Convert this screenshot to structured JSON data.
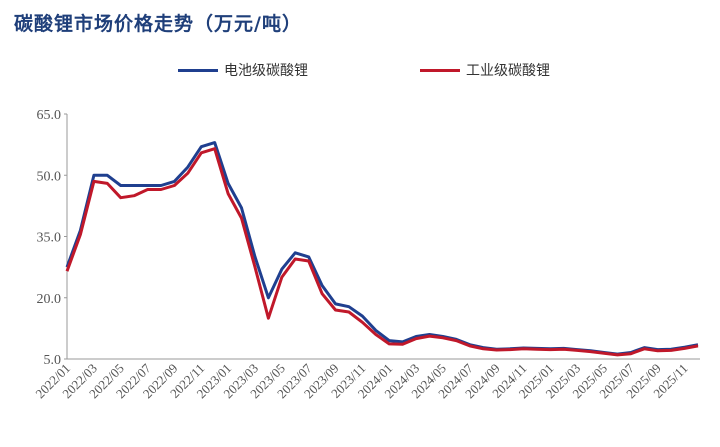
{
  "chart_data": {
    "type": "line",
    "title": "碳酸锂市场价格走势（万元/吨）",
    "ylim": [
      5.0,
      65.0
    ],
    "yticks": [
      "65.0",
      "50.0",
      "35.0",
      "20.0",
      "5.0"
    ],
    "ytick_values": [
      65,
      50,
      35,
      20,
      5
    ],
    "grid": false,
    "legend_position": "top",
    "x_tick_labels": [
      "2022/01",
      "2022/03",
      "2022/05",
      "2022/07",
      "2022/09",
      "2022/11",
      "2023/01",
      "2023/03",
      "2023/05",
      "2023/07",
      "2023/09",
      "2023/11",
      "2024/01",
      "2024/03",
      "2024/05",
      "2024/07",
      "2024/09",
      "2024/11",
      "2025/01",
      "2025/03",
      "2025/05",
      "2025/07",
      "2025/09",
      "2025/11"
    ],
    "x": [
      "2022/01",
      "2022/02",
      "2022/03",
      "2022/04",
      "2022/05",
      "2022/06",
      "2022/07",
      "2022/08",
      "2022/09",
      "2022/10",
      "2022/11",
      "2022/12",
      "2023/01",
      "2023/02",
      "2023/03",
      "2023/04",
      "2023/05",
      "2023/06",
      "2023/07",
      "2023/08",
      "2023/09",
      "2023/10",
      "2023/11",
      "2023/12",
      "2024/01",
      "2024/02",
      "2024/03",
      "2024/04",
      "2024/05",
      "2024/06",
      "2024/07",
      "2024/08",
      "2024/09",
      "2024/10",
      "2024/11",
      "2024/12",
      "2025/01",
      "2025/02",
      "2025/03",
      "2025/04",
      "2025/05",
      "2025/06",
      "2025/07",
      "2025/08",
      "2025/09",
      "2025/10",
      "2025/11",
      "2025/12"
    ],
    "series": [
      {
        "name": "电池级碳酸锂",
        "color": "#1f3f8f",
        "values": [
          27.5,
          36.5,
          50.0,
          50.0,
          47.5,
          47.5,
          47.5,
          47.5,
          48.5,
          52.0,
          57.0,
          58.0,
          48.0,
          42.0,
          30.0,
          20.0,
          27.0,
          31.0,
          30.0,
          23.0,
          18.5,
          17.8,
          15.5,
          12.0,
          9.5,
          9.2,
          10.5,
          11.0,
          10.5,
          9.8,
          8.5,
          7.8,
          7.4,
          7.5,
          7.7,
          7.6,
          7.5,
          7.6,
          7.3,
          7.0,
          6.6,
          6.2,
          6.6,
          7.8,
          7.3,
          7.4,
          7.9,
          8.5
        ]
      },
      {
        "name": "工业级碳酸锂",
        "color": "#c0182a",
        "values": [
          26.5,
          35.5,
          48.5,
          48.0,
          44.5,
          45.0,
          46.5,
          46.5,
          47.5,
          50.5,
          55.5,
          56.5,
          45.5,
          39.5,
          27.5,
          15.0,
          25.0,
          29.5,
          29.0,
          21.0,
          17.0,
          16.5,
          14.0,
          11.0,
          8.7,
          8.6,
          10.0,
          10.6,
          10.2,
          9.5,
          8.2,
          7.5,
          7.2,
          7.3,
          7.5,
          7.4,
          7.3,
          7.4,
          7.1,
          6.8,
          6.4,
          6.0,
          6.3,
          7.5,
          7.0,
          7.1,
          7.6,
          8.2
        ]
      }
    ]
  }
}
